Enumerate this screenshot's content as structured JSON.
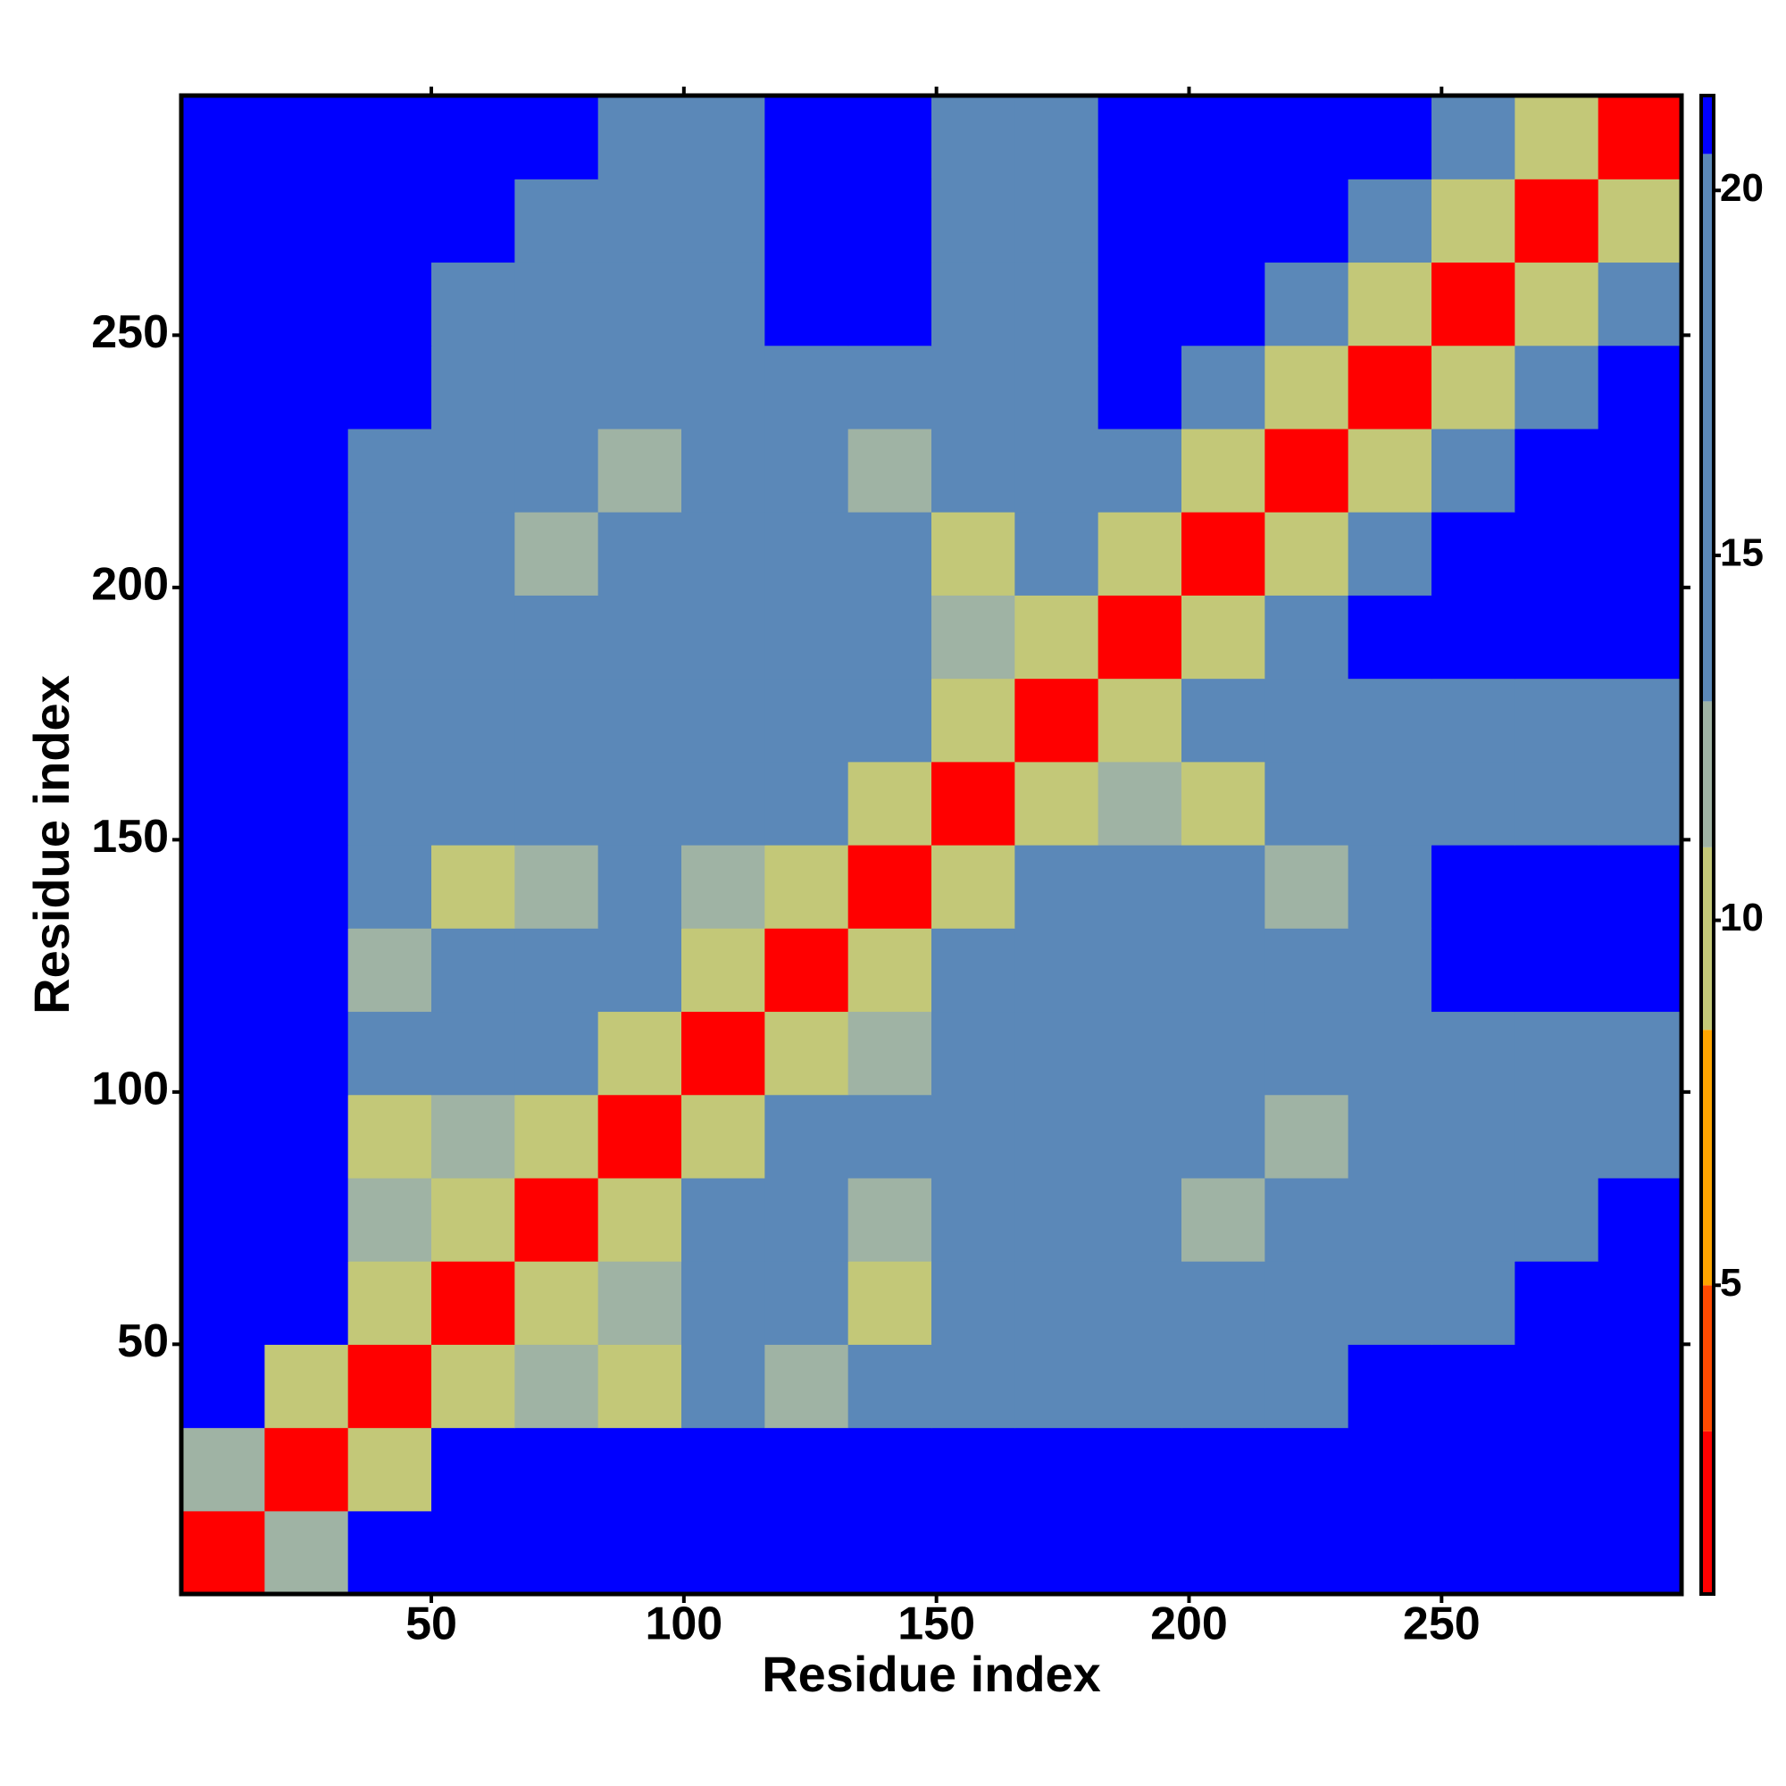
{
  "chart_data": {
    "type": "heatmap",
    "xlabel": "Residue index",
    "ylabel": "Residue index",
    "x": [
      8.75,
      25.25,
      41.75,
      58.25,
      74.75,
      91.25,
      107.75,
      124.25,
      140.75,
      157.25,
      173.75,
      190.25,
      206.75,
      223.25,
      239.75,
      256.25,
      272.75,
      289.25
    ],
    "y": [
      8.75,
      25.25,
      41.75,
      58.25,
      74.75,
      91.25,
      107.75,
      124.25,
      140.75,
      157.25,
      173.75,
      190.25,
      206.75,
      223.25,
      239.75,
      256.25,
      272.75,
      289.25
    ],
    "z": [
      [
        2,
        12,
        21,
        21,
        21,
        21,
        21,
        21,
        21,
        21,
        21,
        21,
        21,
        21,
        21,
        21,
        21,
        21
      ],
      [
        12,
        2,
        9,
        21,
        21,
        21,
        21,
        21,
        21,
        21,
        21,
        21,
        21,
        21,
        21,
        21,
        21,
        21
      ],
      [
        21,
        9,
        2,
        9,
        13,
        11,
        15,
        12,
        15,
        17,
        18,
        17,
        16,
        17,
        21,
        21,
        21,
        21
      ],
      [
        21,
        21,
        9,
        2,
        9,
        12,
        18,
        15,
        11,
        15,
        17,
        18,
        15,
        15,
        18,
        20,
        21,
        21
      ],
      [
        21,
        21,
        13,
        9,
        2,
        9,
        20,
        20,
        13,
        15,
        19,
        20,
        12,
        15,
        17,
        19,
        20,
        21
      ],
      [
        21,
        21,
        11,
        12,
        9,
        2,
        9,
        15,
        15,
        16,
        17,
        19,
        16,
        12,
        16,
        18,
        19,
        20
      ],
      [
        21,
        21,
        15,
        18,
        20,
        9,
        2,
        9,
        12,
        16,
        20,
        18,
        19,
        15,
        17,
        18,
        19,
        20
      ],
      [
        21,
        21,
        12,
        15,
        20,
        15,
        9,
        2,
        9,
        19,
        19,
        15,
        19,
        15,
        14,
        21,
        21,
        21
      ],
      [
        21,
        21,
        15,
        11,
        13,
        15,
        12,
        9,
        2,
        9,
        15,
        14,
        19,
        13,
        17,
        21,
        21,
        21
      ],
      [
        21,
        21,
        17,
        15,
        15,
        16,
        16,
        19,
        9,
        2,
        9,
        12,
        11,
        15,
        17,
        18,
        18,
        19
      ],
      [
        21,
        21,
        18,
        17,
        19,
        17,
        20,
        19,
        15,
        9,
        2,
        9,
        14,
        16,
        17,
        18,
        19,
        20
      ],
      [
        21,
        21,
        17,
        18,
        20,
        19,
        18,
        15,
        14,
        12,
        9,
        2,
        9,
        16,
        21,
        21,
        21,
        21
      ],
      [
        21,
        21,
        16,
        15,
        12,
        16,
        19,
        19,
        19,
        11,
        14,
        9,
        2,
        9,
        15,
        21,
        21,
        21
      ],
      [
        21,
        21,
        17,
        15,
        15,
        12,
        15,
        15,
        13,
        15,
        16,
        16,
        9,
        2,
        9,
        15,
        21,
        21
      ],
      [
        21,
        21,
        21,
        18,
        17,
        16,
        17,
        14,
        17,
        17,
        17,
        21,
        15,
        9,
        2,
        9,
        15,
        21
      ],
      [
        21,
        21,
        21,
        20,
        19,
        18,
        18,
        21,
        21,
        18,
        18,
        21,
        21,
        15,
        9,
        2,
        9,
        15
      ],
      [
        21,
        21,
        21,
        21,
        20,
        19,
        19,
        21,
        21,
        18,
        19,
        21,
        21,
        21,
        15,
        9,
        2,
        9
      ],
      [
        21,
        21,
        21,
        21,
        21,
        20,
        20,
        21,
        21,
        19,
        20,
        21,
        21,
        21,
        21,
        15,
        9,
        2
      ]
    ],
    "xlim": [
      0.5,
      297.5
    ],
    "ylim": [
      0.5,
      297.5
    ],
    "xticks": [
      50,
      100,
      150,
      200,
      250
    ],
    "yticks": [
      50,
      100,
      150,
      200,
      250
    ],
    "colorbar": {
      "zlim": [
        0.77,
        21.3
      ],
      "ticks": [
        5,
        10,
        15,
        20
      ],
      "levels": [
        0.77,
        3,
        5,
        8.5,
        11,
        13,
        20.5,
        21.3
      ],
      "colors": [
        "#ff0000",
        "#ff4a00",
        "#ffa500",
        "#c3c878",
        "#9fb3a4",
        "#5b88b8",
        "#0000ff"
      ]
    }
  }
}
